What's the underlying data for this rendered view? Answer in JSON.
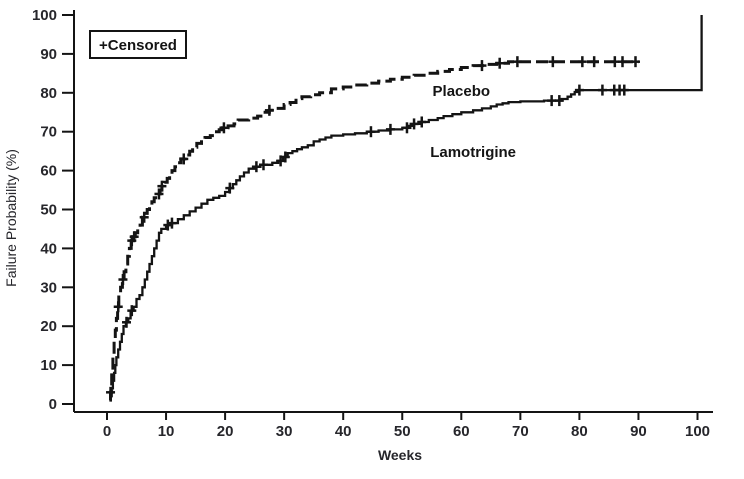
{
  "chart_data": {
    "type": "line",
    "subtype": "kaplan-meier-step",
    "title": "",
    "xlabel": "Weeks",
    "ylabel": "Failure Probability (%)",
    "xlim": [
      0,
      100
    ],
    "ylim": [
      0,
      100
    ],
    "xticks": [
      0,
      10,
      20,
      30,
      40,
      50,
      60,
      70,
      80,
      90,
      100
    ],
    "yticks": [
      0,
      10,
      20,
      30,
      40,
      50,
      60,
      70,
      80,
      90,
      100
    ],
    "grid": false,
    "legend": {
      "text": "+Censored",
      "marker": "+",
      "marker_meaning": "Censored observation",
      "position": "top-left"
    },
    "colors": {
      "line": "#141414",
      "axis": "#141414",
      "text": "#26262b",
      "background": "#ffffff"
    },
    "series": [
      {
        "name": "Placebo",
        "line_style": "dashed",
        "label": {
          "week": 60,
          "pct": 80.5
        },
        "steps": [
          [
            0.4,
            1
          ],
          [
            0.6,
            3
          ],
          [
            0.8,
            8
          ],
          [
            1.0,
            12
          ],
          [
            1.2,
            16
          ],
          [
            1.4,
            19
          ],
          [
            1.6,
            22
          ],
          [
            1.8,
            25
          ],
          [
            2.0,
            28
          ],
          [
            2.3,
            30
          ],
          [
            2.6,
            32
          ],
          [
            2.9,
            34
          ],
          [
            3.2,
            36
          ],
          [
            3.5,
            38
          ],
          [
            3.8,
            40
          ],
          [
            4.1,
            42
          ],
          [
            4.4,
            43
          ],
          [
            4.8,
            44
          ],
          [
            5.2,
            45
          ],
          [
            5.6,
            46
          ],
          [
            6.0,
            48
          ],
          [
            6.4,
            49
          ],
          [
            6.8,
            50
          ],
          [
            7.2,
            51
          ],
          [
            7.6,
            52
          ],
          [
            8.0,
            53
          ],
          [
            8.5,
            54
          ],
          [
            9.0,
            55
          ],
          [
            9.3,
            56
          ],
          [
            9.7,
            57
          ],
          [
            10.2,
            58
          ],
          [
            10.6,
            59
          ],
          [
            11.0,
            60
          ],
          [
            11.5,
            61
          ],
          [
            12.0,
            62
          ],
          [
            12.5,
            63
          ],
          [
            13.2,
            64
          ],
          [
            14.0,
            65
          ],
          [
            14.5,
            66
          ],
          [
            15.2,
            67
          ],
          [
            16.0,
            68
          ],
          [
            16.6,
            68.5
          ],
          [
            17.5,
            69
          ],
          [
            18.2,
            70
          ],
          [
            19.0,
            70.5
          ],
          [
            19.5,
            71
          ],
          [
            20.5,
            71.5
          ],
          [
            21.5,
            72
          ],
          [
            22.2,
            73
          ],
          [
            24.0,
            73.5
          ],
          [
            25.5,
            74
          ],
          [
            26.5,
            75
          ],
          [
            27.5,
            75.5
          ],
          [
            29.0,
            76
          ],
          [
            30.0,
            77
          ],
          [
            31.0,
            77.5
          ],
          [
            32.0,
            78.5
          ],
          [
            33.0,
            79
          ],
          [
            34.5,
            79.5
          ],
          [
            36.0,
            80
          ],
          [
            38.0,
            81
          ],
          [
            40.0,
            81.5
          ],
          [
            42.0,
            82
          ],
          [
            44.0,
            82.5
          ],
          [
            46.0,
            83
          ],
          [
            48.0,
            83.5
          ],
          [
            50.0,
            84
          ],
          [
            52.0,
            84.5
          ],
          [
            54.0,
            85
          ],
          [
            56.0,
            85.5
          ],
          [
            58.0,
            86
          ],
          [
            60.0,
            86.5
          ],
          [
            62.0,
            87
          ],
          [
            64.0,
            87.3
          ],
          [
            66.0,
            87.6
          ],
          [
            68.0,
            88
          ],
          [
            90.0,
            88
          ]
        ],
        "censored_weeks": [
          0.6,
          1.9,
          2.7,
          4.2,
          4.6,
          6.3,
          8.8,
          9.3,
          13.0,
          19.8,
          27.5,
          63.5,
          66.5,
          69.5,
          75.5,
          80.5,
          82.5,
          86.0,
          87.3,
          89.5
        ]
      },
      {
        "name": "Lamotrigine",
        "line_style": "solid",
        "label": {
          "week": 62,
          "pct": 64.8
        },
        "steps": [
          [
            0.4,
            1
          ],
          [
            0.6,
            2
          ],
          [
            0.8,
            4
          ],
          [
            1.0,
            6
          ],
          [
            1.2,
            8
          ],
          [
            1.4,
            10
          ],
          [
            1.6,
            12
          ],
          [
            1.9,
            14
          ],
          [
            2.2,
            16
          ],
          [
            2.5,
            18
          ],
          [
            2.8,
            20
          ],
          [
            3.2,
            21
          ],
          [
            3.6,
            22
          ],
          [
            4.0,
            24
          ],
          [
            4.5,
            25
          ],
          [
            5.0,
            27
          ],
          [
            5.5,
            28
          ],
          [
            6.0,
            30
          ],
          [
            6.4,
            32
          ],
          [
            6.8,
            34
          ],
          [
            7.2,
            36
          ],
          [
            7.6,
            38
          ],
          [
            8.0,
            40
          ],
          [
            8.4,
            42
          ],
          [
            8.8,
            44
          ],
          [
            9.2,
            45
          ],
          [
            10.0,
            46
          ],
          [
            11.0,
            46.5
          ],
          [
            12.0,
            47.5
          ],
          [
            13.0,
            48.5
          ],
          [
            14.0,
            49.5
          ],
          [
            15.0,
            50.5
          ],
          [
            16.0,
            51.5
          ],
          [
            17.0,
            52.5
          ],
          [
            18.0,
            53
          ],
          [
            19.0,
            53.5
          ],
          [
            20.0,
            54.5
          ],
          [
            20.7,
            55.5
          ],
          [
            21.3,
            56.5
          ],
          [
            21.9,
            57.5
          ],
          [
            22.5,
            58.5
          ],
          [
            23.2,
            59.5
          ],
          [
            24.0,
            60.5
          ],
          [
            25.0,
            61
          ],
          [
            26.0,
            61.5
          ],
          [
            28.0,
            62
          ],
          [
            29.0,
            62.5
          ],
          [
            29.8,
            63.5
          ],
          [
            30.6,
            64.5
          ],
          [
            31.4,
            65
          ],
          [
            32.2,
            65.5
          ],
          [
            33.0,
            66
          ],
          [
            34.0,
            66.5
          ],
          [
            35.0,
            67.5
          ],
          [
            36.0,
            68
          ],
          [
            37.0,
            68.5
          ],
          [
            38.0,
            69
          ],
          [
            40.0,
            69.3
          ],
          [
            42.0,
            69.6
          ],
          [
            44.0,
            70
          ],
          [
            46.0,
            70.3
          ],
          [
            48.0,
            70.6
          ],
          [
            50.0,
            71
          ],
          [
            51.0,
            71.5
          ],
          [
            52.0,
            72
          ],
          [
            53.0,
            72.5
          ],
          [
            54.5,
            73
          ],
          [
            56.0,
            73.5
          ],
          [
            57.0,
            74
          ],
          [
            58.5,
            74.5
          ],
          [
            60.0,
            75
          ],
          [
            62.0,
            75.5
          ],
          [
            63.5,
            76
          ],
          [
            65.0,
            76.5
          ],
          [
            66.0,
            77
          ],
          [
            67.0,
            77.3
          ],
          [
            68.0,
            77.6
          ],
          [
            70.0,
            77.8
          ],
          [
            74.0,
            78
          ],
          [
            77.0,
            78.4
          ],
          [
            78.0,
            79
          ],
          [
            78.6,
            79.6
          ],
          [
            79.2,
            80.2
          ],
          [
            80.0,
            80.7
          ],
          [
            100.7,
            80.7
          ],
          [
            100.7,
            100
          ]
        ],
        "censored_weeks": [
          3.3,
          4.2,
          10.3,
          11.0,
          20.8,
          25.3,
          26.5,
          29.4,
          30.2,
          44.7,
          48.0,
          50.8,
          52.0,
          53.3,
          75.3,
          76.6,
          80.0,
          83.9,
          85.9,
          86.8,
          87.6
        ]
      }
    ]
  }
}
